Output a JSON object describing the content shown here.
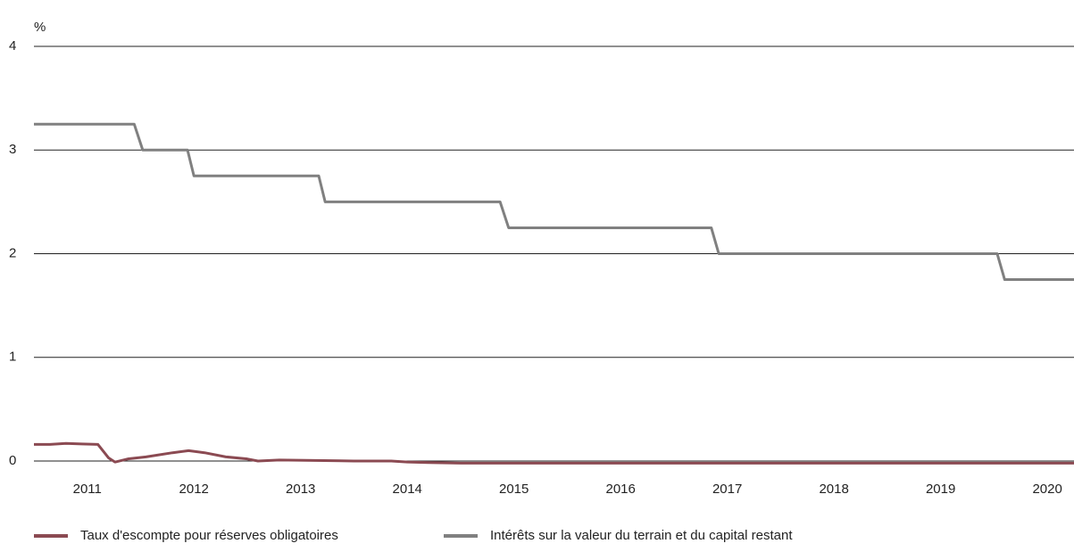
{
  "chart_data": {
    "type": "line",
    "ylabel": "%",
    "xlim": [
      2011,
      2020.75
    ],
    "xticks": [
      {
        "value": 2011.5,
        "label": "2011"
      },
      {
        "value": 2012.5,
        "label": "2012"
      },
      {
        "value": 2013.5,
        "label": "2013"
      },
      {
        "value": 2014.5,
        "label": "2014"
      },
      {
        "value": 2015.5,
        "label": "2015"
      },
      {
        "value": 2016.5,
        "label": "2016"
      },
      {
        "value": 2017.5,
        "label": "2017"
      },
      {
        "value": 2018.5,
        "label": "2018"
      },
      {
        "value": 2019.5,
        "label": "2019"
      },
      {
        "value": 2020.5,
        "label": "2020"
      }
    ],
    "ylim": [
      0,
      4
    ],
    "yticks": [
      0,
      1,
      2,
      3,
      4
    ],
    "grid": true,
    "legend": "bottom",
    "series": [
      {
        "name": "Taux d'escompte pour réserves obligatoires",
        "color": "#8b4a52",
        "x": [
          2011.0,
          2011.15,
          2011.3,
          2011.45,
          2011.6,
          2011.7,
          2011.76,
          2011.88,
          2012.05,
          2012.3,
          2012.45,
          2012.6,
          2012.8,
          2013.0,
          2013.1,
          2013.3,
          2014.0,
          2014.35,
          2014.5,
          2014.7,
          2015.0,
          2016.0,
          2018.0,
          2020.75
        ],
        "values": [
          0.16,
          0.16,
          0.17,
          0.165,
          0.16,
          0.03,
          -0.01,
          0.02,
          0.04,
          0.08,
          0.1,
          0.08,
          0.04,
          0.02,
          0.0,
          0.01,
          0.0,
          0.0,
          -0.01,
          -0.015,
          -0.02,
          -0.02,
          -0.02,
          -0.02
        ]
      },
      {
        "name": "Intérêts sur la valeur du terrain et du capital restant",
        "color": "#808080",
        "x": [
          2011.0,
          2011.94,
          2012.02,
          2012.44,
          2012.5,
          2013.67,
          2013.73,
          2015.37,
          2015.45,
          2017.35,
          2017.42,
          2020.03,
          2020.1,
          2020.75
        ],
        "values": [
          3.25,
          3.25,
          3.0,
          3.0,
          2.75,
          2.75,
          2.5,
          2.5,
          2.25,
          2.25,
          2.0,
          2.0,
          1.75,
          1.75
        ]
      }
    ]
  }
}
